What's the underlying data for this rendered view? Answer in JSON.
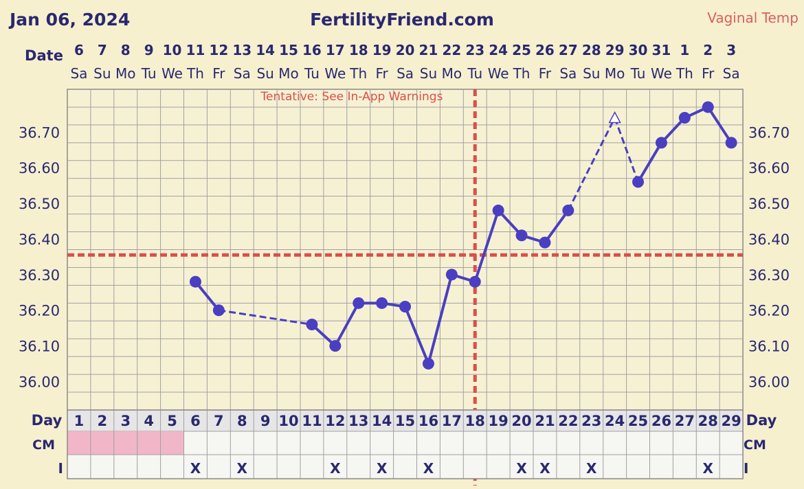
{
  "header": {
    "cycle_start": "Jan 06, 2024",
    "site": "FertilityFriend.com",
    "temp_type": "Vaginal Temp"
  },
  "row_labels": {
    "date": "Date",
    "day": "Day",
    "cm": "CM",
    "intercourse": "I"
  },
  "annotation": "Tentative: See In-App Warnings",
  "colors": {
    "line": "#4a3fc0",
    "cover_line": "#d9504a",
    "grid": "#a0a0a0",
    "period": "#f2b6c9",
    "background": "#f6f0cf"
  },
  "chart_data": {
    "type": "line",
    "title": "",
    "xlabel": "Day",
    "ylabel": "",
    "ylim": [
      35.92,
      36.82
    ],
    "y_ticks": [
      "36.00",
      "36.10",
      "36.20",
      "36.30",
      "36.40",
      "36.50",
      "36.60",
      "36.70"
    ],
    "dates": [
      "6",
      "7",
      "8",
      "9",
      "10",
      "11",
      "12",
      "13",
      "14",
      "15",
      "16",
      "17",
      "18",
      "19",
      "20",
      "21",
      "22",
      "23",
      "24",
      "25",
      "26",
      "27",
      "28",
      "29",
      "30",
      "31",
      "1",
      "2",
      "3"
    ],
    "weekdays": [
      "Sa",
      "Su",
      "Mo",
      "Tu",
      "We",
      "Th",
      "Fr",
      "Sa",
      "Su",
      "Mo",
      "Tu",
      "We",
      "Th",
      "Fr",
      "Sa",
      "Su",
      "Mo",
      "Tu",
      "We",
      "Th",
      "Fr",
      "Sa",
      "Su",
      "Mo",
      "Tu",
      "We",
      "Th",
      "Fr",
      "Sa"
    ],
    "cycle_days": [
      1,
      2,
      3,
      4,
      5,
      6,
      7,
      8,
      9,
      10,
      11,
      12,
      13,
      14,
      15,
      16,
      17,
      18,
      19,
      20,
      21,
      22,
      23,
      24,
      25,
      26,
      27,
      28,
      29
    ],
    "temperatures": [
      null,
      null,
      null,
      null,
      null,
      36.28,
      36.2,
      null,
      null,
      null,
      36.16,
      36.1,
      36.22,
      36.22,
      36.21,
      36.05,
      36.3,
      36.28,
      36.48,
      36.41,
      36.39,
      36.48,
      null,
      36.74,
      36.56,
      36.67,
      36.74,
      36.77,
      36.67
    ],
    "discarded_days": [
      24
    ],
    "cover_line": 36.355,
    "ovulation_day": 18,
    "period_days": [
      1,
      2,
      3,
      4,
      5
    ],
    "intercourse_days": [
      6,
      8,
      12,
      14,
      16,
      20,
      21,
      23,
      28
    ],
    "intercourse_mark": "X"
  }
}
